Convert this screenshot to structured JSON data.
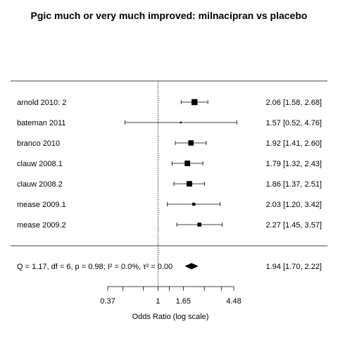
{
  "chart_data": {
    "type": "forest",
    "title": "Pgic much or very much improved: milnacipran vs placebo",
    "xlabel": "Odds Ratio (log scale)",
    "x_scale": "log",
    "reference_line": 1,
    "xticks": [
      0.37,
      1,
      1.65,
      4.48
    ],
    "xtick_labels": [
      "0.37",
      "1",
      "1.65",
      "4.48"
    ],
    "xlim": [
      0.37,
      4.48
    ],
    "studies": [
      {
        "label": "arnold 2010: 2",
        "or": 2.06,
        "lo": 1.58,
        "hi": 2.68,
        "ci_text": "2.06 [1.58, 2.68]",
        "weight": 1.0
      },
      {
        "label": "bateman 2011",
        "or": 1.57,
        "lo": 0.52,
        "hi": 4.76,
        "ci_text": "1.57 [0.52, 4.76]",
        "weight": 0.05
      },
      {
        "label": "branco 2010",
        "or": 1.92,
        "lo": 1.41,
        "hi": 2.6,
        "ci_text": "1.92 [1.41, 2.60]",
        "weight": 0.85
      },
      {
        "label": "clauw 2008.1",
        "or": 1.79,
        "lo": 1.32,
        "hi": 2.43,
        "ci_text": "1.79 [1.32, 2.43]",
        "weight": 0.9
      },
      {
        "label": "clauw 2008.2",
        "or": 1.86,
        "lo": 1.37,
        "hi": 2.51,
        "ci_text": "1.86 [1.37, 2.51]",
        "weight": 0.9
      },
      {
        "label": "mease 2009.1",
        "or": 2.03,
        "lo": 1.2,
        "hi": 3.42,
        "ci_text": "2.03 [1.20, 3.42]",
        "weight": 0.35
      },
      {
        "label": "mease 2009.2",
        "or": 2.27,
        "lo": 1.45,
        "hi": 3.57,
        "ci_text": "2.27 [1.45, 3.57]",
        "weight": 0.55
      }
    ],
    "summary": {
      "or": 1.94,
      "lo": 1.7,
      "hi": 2.22,
      "ci_text": "1.94 [1.70, 2.22]",
      "heterogeneity": "Q = 1.17, df = 6, p = 0.98; I² = 0.0%, τ² = 0.00"
    }
  }
}
